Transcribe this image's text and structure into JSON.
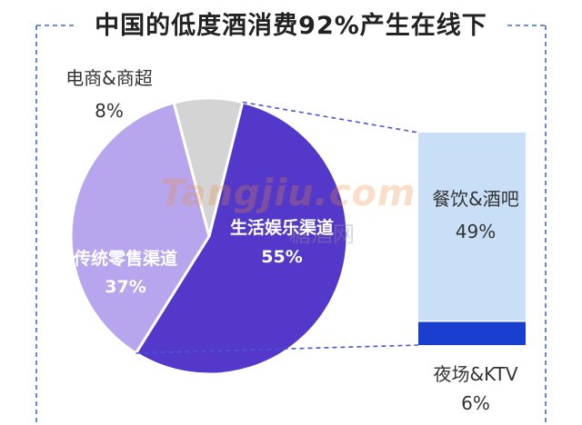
{
  "title": "中国的低度酒消费92%产生在线下",
  "watermark": {
    "latin": "Tangjiu.com",
    "chinese": "糖酒网"
  },
  "chart_data": [
    {
      "type": "pie",
      "categories": [
        "生活娱乐渠道",
        "传统零售渠道",
        "电商&商超"
      ],
      "values": [
        55,
        37,
        8
      ],
      "value_labels": [
        "55%",
        "37%",
        "8%"
      ],
      "colors": [
        "#5438c9",
        "#b7a5ee",
        "#d4d4d4"
      ],
      "label_placement": [
        "inside",
        "inside",
        "outside-top-left"
      ]
    },
    {
      "type": "bar",
      "stacked": true,
      "parent_category": "生活娱乐渠道",
      "categories": [
        "餐饮&酒吧",
        "夜场&KTV"
      ],
      "values": [
        49,
        6
      ],
      "value_labels": [
        "49%",
        "6%"
      ],
      "colors": [
        "#c9dff8",
        "#1a3fd0"
      ]
    }
  ]
}
